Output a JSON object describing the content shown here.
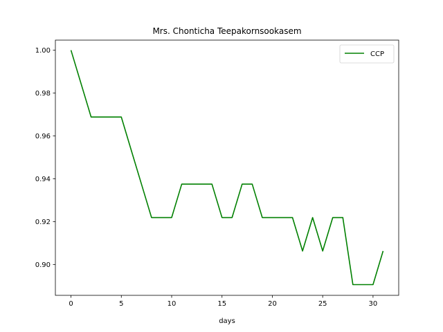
{
  "chart_data": {
    "type": "line",
    "title": "Mrs. Chonticha Teepakornsookasem",
    "xlabel": "days",
    "ylabel": "",
    "xlim": [
      -1.55,
      32.55
    ],
    "ylim": [
      0.8856,
      1.0047
    ],
    "xticks": [
      0,
      5,
      10,
      15,
      20,
      25,
      30
    ],
    "yticks": [
      0.9,
      0.92,
      0.94,
      0.96,
      0.98,
      1.0
    ],
    "ytick_labels": [
      "0.90",
      "0.92",
      "0.94",
      "0.96",
      "0.98",
      "1.00"
    ],
    "grid": false,
    "legend_position": "top-right",
    "series": [
      {
        "name": "CCP",
        "color": "#008000",
        "x": [
          0,
          1,
          2,
          3,
          4,
          5,
          6,
          7,
          8,
          9,
          10,
          11,
          12,
          13,
          14,
          15,
          16,
          17,
          18,
          19,
          20,
          21,
          22,
          23,
          24,
          25,
          26,
          27,
          28,
          29,
          30,
          31
        ],
        "y": [
          1.0,
          0.9844,
          0.9688,
          0.9688,
          0.9688,
          0.9688,
          0.9531,
          0.9375,
          0.9219,
          0.9219,
          0.9219,
          0.9375,
          0.9375,
          0.9375,
          0.9375,
          0.9219,
          0.9219,
          0.9375,
          0.9375,
          0.9219,
          0.9219,
          0.9219,
          0.9219,
          0.9063,
          0.9219,
          0.9063,
          0.9219,
          0.9219,
          0.8906,
          0.8906,
          0.8906,
          0.9063
        ]
      }
    ]
  }
}
